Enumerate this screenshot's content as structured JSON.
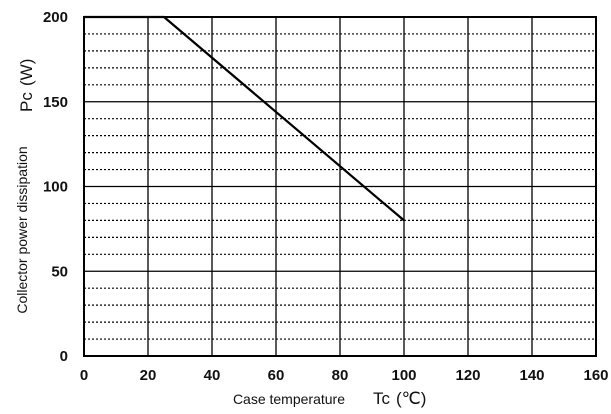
{
  "chart_data": {
    "type": "line",
    "title": "",
    "xlabel": {
      "text": "Case temperature",
      "symbol": "Tc",
      "unit": "(℃)"
    },
    "ylabel": {
      "text": "Collector power dissipation",
      "symbol": "Pc",
      "unit": "(W)"
    },
    "xlim": [
      0,
      160
    ],
    "ylim": [
      0,
      200
    ],
    "x_ticks": [
      0,
      20,
      40,
      60,
      80,
      100,
      120,
      140,
      160
    ],
    "y_ticks": [
      0,
      50,
      100,
      150,
      200
    ],
    "grid": true,
    "series": [
      {
        "x": [
          0,
          25,
          100
        ],
        "y": [
          200,
          200,
          80
        ],
        "color": "#000000"
      }
    ]
  }
}
